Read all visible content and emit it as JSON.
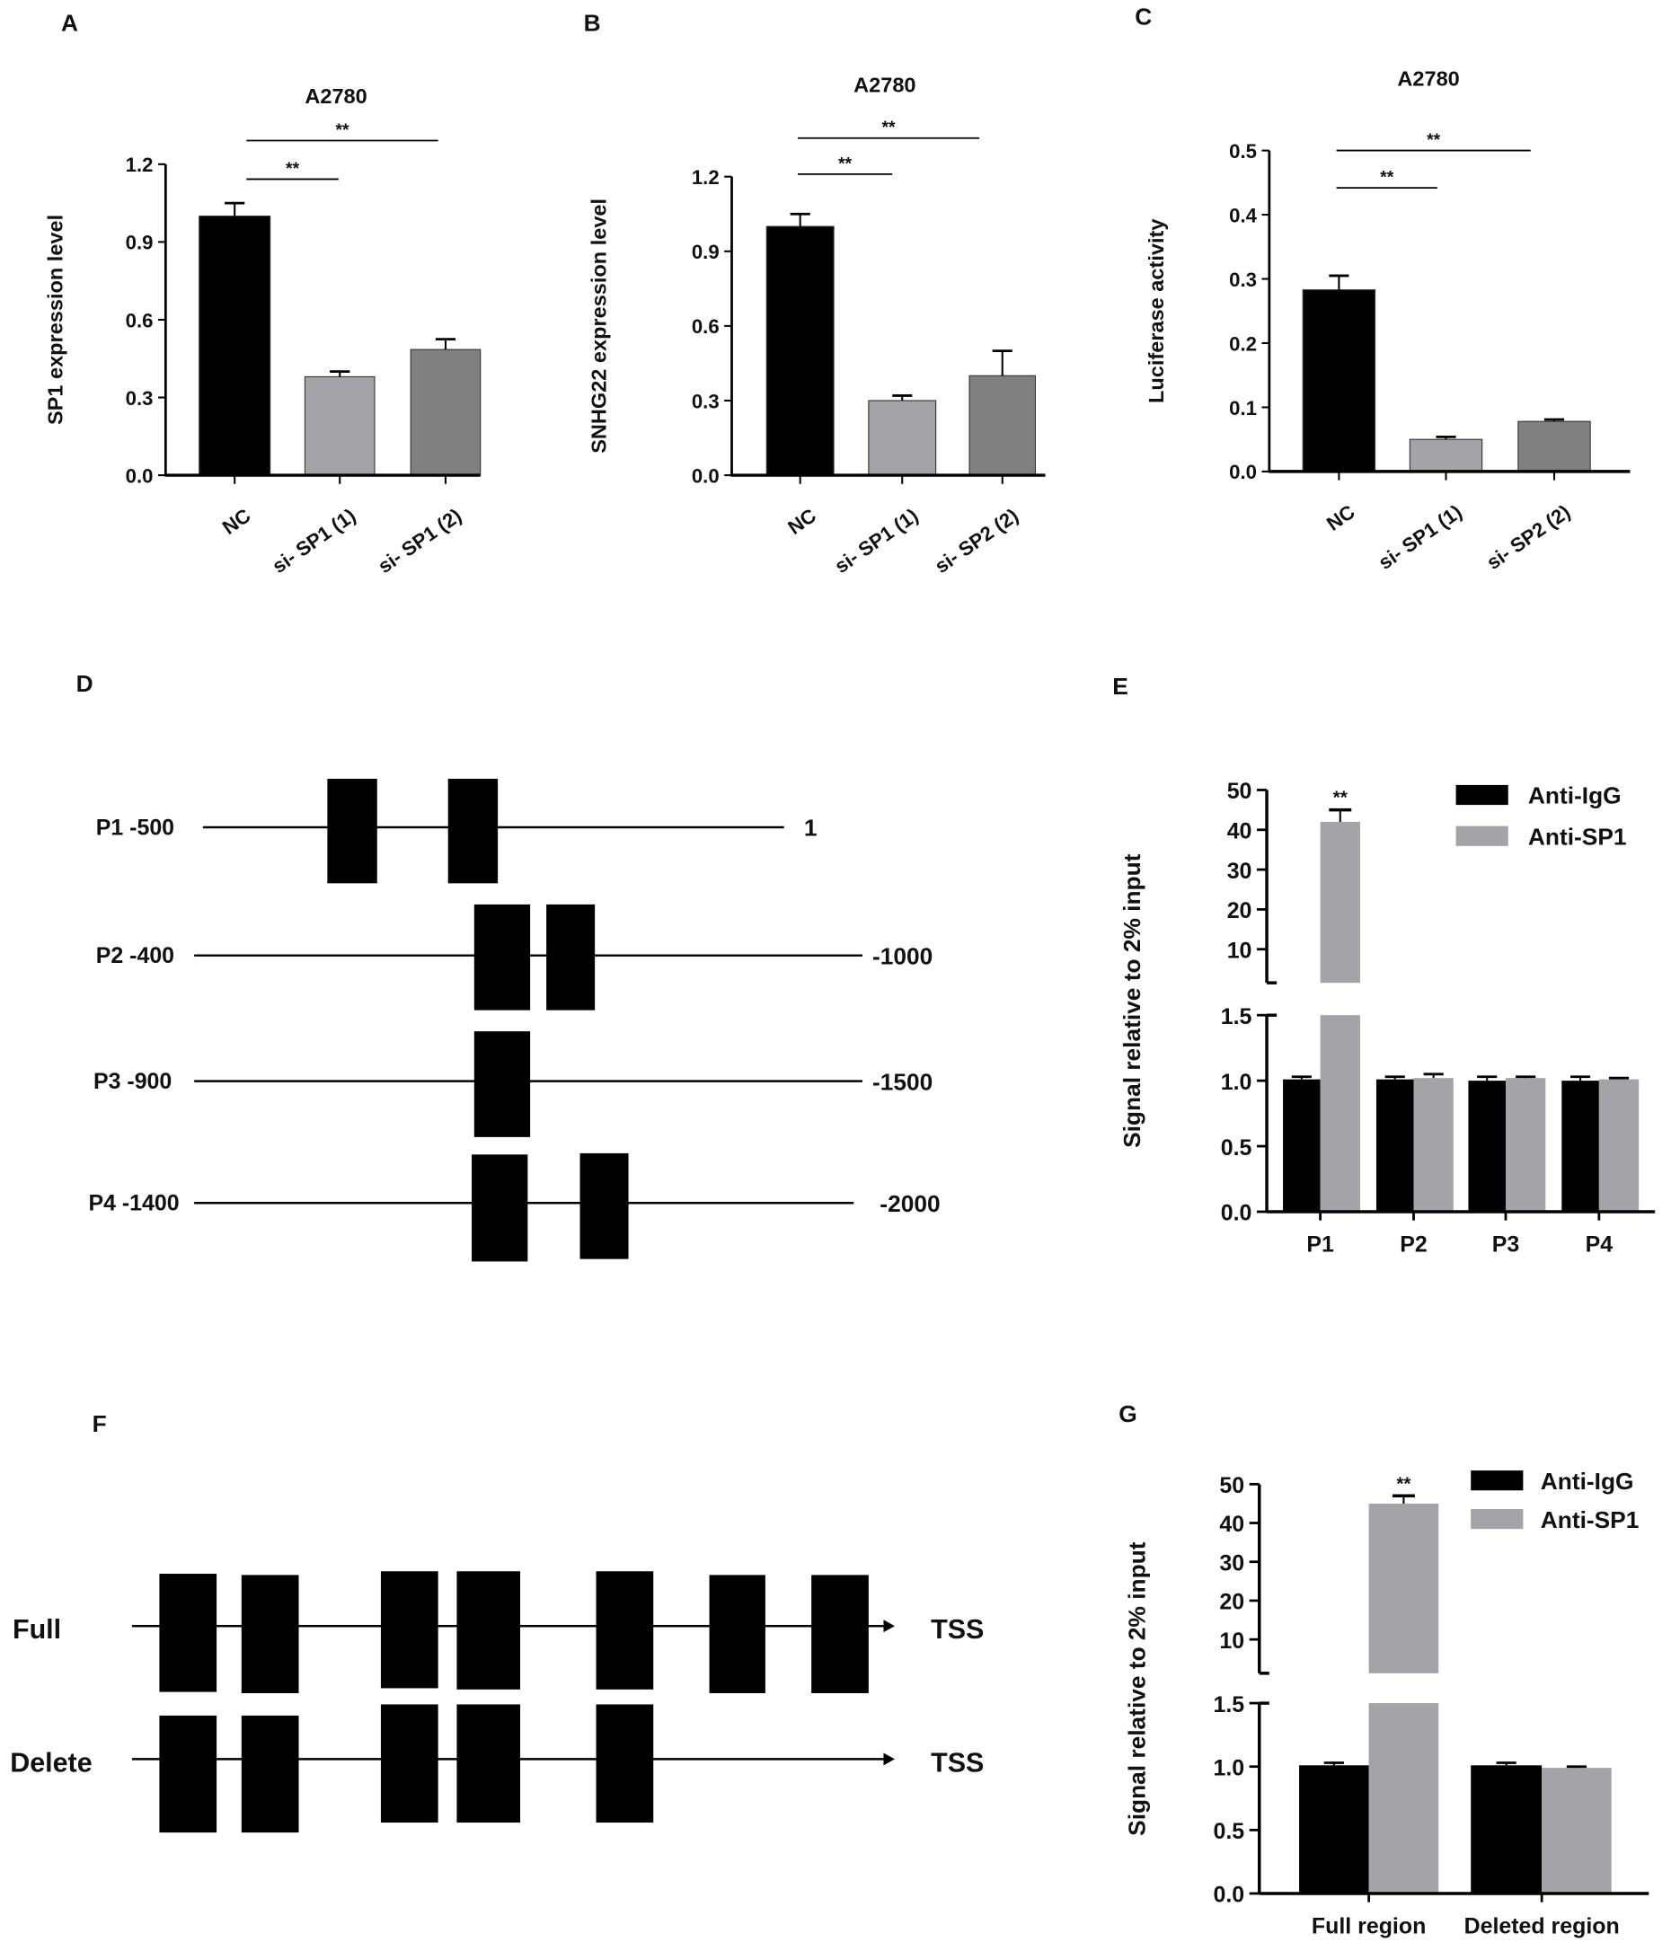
{
  "panel_labels": {
    "A": "A",
    "B": "B",
    "C": "C",
    "D": "D",
    "E": "E",
    "F": "F",
    "G": "G"
  },
  "colors": {
    "black": "#000000",
    "light_gray": "#a3a3a8",
    "dark_gray": "#808080"
  },
  "chart_data": [
    {
      "id": "A",
      "type": "bar",
      "title": "A2780",
      "ylabel": "SP1 expression level",
      "ylim": [
        0,
        1.2
      ],
      "yticks": [
        "0.0",
        "0.3",
        "0.6",
        "0.9",
        "1.2"
      ],
      "categories": [
        "NC",
        "si- SP1 (1)",
        "si- SP1 (2)"
      ],
      "values": [
        1.0,
        0.38,
        0.485
      ],
      "errors": [
        0.05,
        0.02,
        0.04
      ],
      "bar_colors": [
        "#000000",
        "#a3a3a8",
        "#808080"
      ],
      "significance": [
        {
          "label": "**",
          "from": "NC",
          "to": "si- SP1 (1)"
        },
        {
          "label": "**",
          "from": "NC",
          "to": "si- SP1 (2)"
        }
      ]
    },
    {
      "id": "B",
      "type": "bar",
      "title": "A2780",
      "ylabel": "SNHG22 expression level",
      "ylim": [
        0,
        1.2
      ],
      "yticks": [
        "0.0",
        "0.3",
        "0.6",
        "0.9",
        "1.2"
      ],
      "categories": [
        "NC",
        "si- SP1 (1)",
        "si- SP2 (2)"
      ],
      "values": [
        1.0,
        0.3,
        0.4
      ],
      "errors": [
        0.05,
        0.02,
        0.1
      ],
      "bar_colors": [
        "#000000",
        "#a3a3a8",
        "#808080"
      ],
      "significance": [
        {
          "label": "**",
          "from": "NC",
          "to": "si- SP1 (1)"
        },
        {
          "label": "**",
          "from": "NC",
          "to": "si- SP2 (2)"
        }
      ]
    },
    {
      "id": "C",
      "type": "bar",
      "title": "A2780",
      "ylabel": "Luciferase activity",
      "ylim": [
        0,
        0.5
      ],
      "yticks": [
        "0.0",
        "0.1",
        "0.2",
        "0.3",
        "0.4",
        "0.5"
      ],
      "categories": [
        "NC",
        "si- SP1 (1)",
        "si- SP2 (2)"
      ],
      "values": [
        0.283,
        0.05,
        0.078
      ],
      "errors": [
        0.022,
        0.004,
        0.003
      ],
      "bar_colors": [
        "#000000",
        "#a3a3a8",
        "#808080"
      ],
      "significance": [
        {
          "label": "**",
          "from": "NC",
          "to": "si- SP1 (1)"
        },
        {
          "label": "**",
          "from": "NC",
          "to": "si- SP2 (2)"
        }
      ]
    },
    {
      "id": "E",
      "type": "bar",
      "ylabel": "Signal relative to 2% input",
      "broken_axis": true,
      "ylim_lower": [
        0,
        1.5
      ],
      "ylim_upper": [
        0,
        50
      ],
      "yticks_lower": [
        "0.0",
        "0.5",
        "1.0",
        "1.5"
      ],
      "yticks_upper": [
        "10",
        "20",
        "30",
        "40",
        "50"
      ],
      "categories": [
        "P1",
        "P2",
        "P3",
        "P4"
      ],
      "series": [
        {
          "name": "Anti-IgG",
          "color": "#000000",
          "values": [
            1.01,
            1.01,
            1.0,
            1.0
          ],
          "errors": [
            0.02,
            0.02,
            0.03,
            0.03
          ]
        },
        {
          "name": "Anti-SP1",
          "color": "#a3a3a8",
          "values": [
            42,
            1.02,
            1.02,
            1.01
          ],
          "errors": [
            3,
            0.03,
            0.01,
            0.01
          ]
        }
      ],
      "annotations": [
        {
          "label": "**",
          "category": "P1",
          "series": "Anti-SP1"
        }
      ],
      "legend": "top-right"
    },
    {
      "id": "G",
      "type": "bar",
      "ylabel": "Signal relative to 2% input",
      "broken_axis": true,
      "ylim_lower": [
        0,
        1.5
      ],
      "ylim_upper": [
        0,
        50
      ],
      "yticks_lower": [
        "0.0",
        "0.5",
        "1.0",
        "1.5"
      ],
      "yticks_upper": [
        "10",
        "20",
        "30",
        "40",
        "50"
      ],
      "categories": [
        "Full region",
        "Deleted region"
      ],
      "series": [
        {
          "name": "Anti-IgG",
          "color": "#000000",
          "values": [
            1.01,
            1.01
          ],
          "errors": [
            0.02,
            0.02
          ]
        },
        {
          "name": "Anti-SP1",
          "color": "#a3a3a8",
          "values": [
            45,
            0.99
          ],
          "errors": [
            2,
            0.01
          ]
        }
      ],
      "annotations": [
        {
          "label": "**",
          "category": "Full region",
          "series": "Anti-SP1"
        }
      ],
      "legend": "top-right"
    }
  ],
  "diagram_D": {
    "rows": [
      {
        "left_label": "P1 -500",
        "right_label": "1",
        "site_count": 2
      },
      {
        "left_label": "P2 -400",
        "right_label": "-1000",
        "site_count": 2
      },
      {
        "left_label": "P3 -900",
        "right_label": "-1500",
        "site_count": 1
      },
      {
        "left_label": "P4 -1400",
        "right_label": "-2000",
        "site_count": 2
      }
    ]
  },
  "diagram_F": {
    "rows": [
      {
        "left_label": "Full",
        "right_label": "TSS",
        "site_count": 7
      },
      {
        "left_label": "Delete",
        "right_label": "TSS",
        "site_count": 5
      }
    ]
  }
}
